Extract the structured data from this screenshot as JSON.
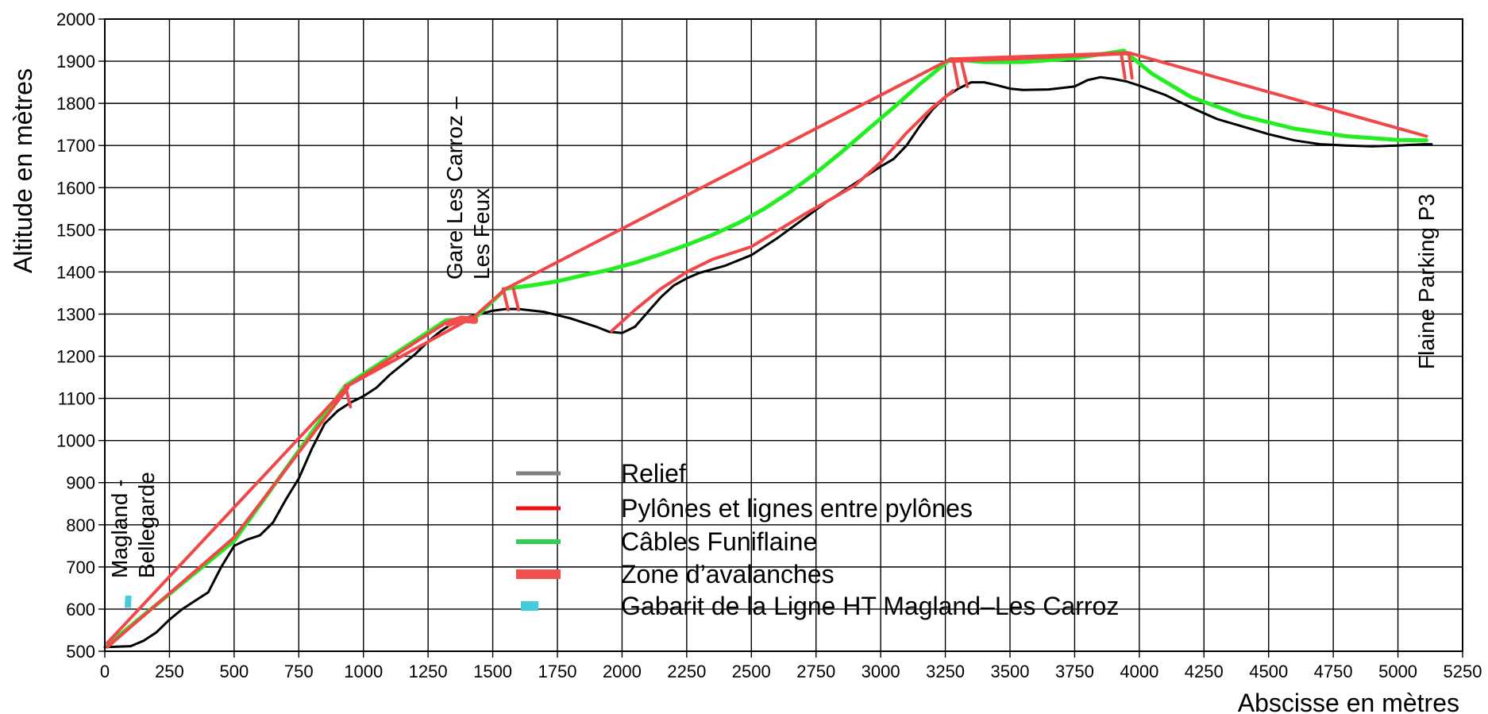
{
  "chart_data": {
    "type": "line",
    "xlabel": "Abscisse en mètres",
    "ylabel": "Altitude en mètres",
    "xlim": [
      0,
      5250
    ],
    "ylim": [
      500,
      2000
    ],
    "xticks": [
      0,
      250,
      500,
      750,
      1000,
      1250,
      1500,
      1750,
      2000,
      2250,
      2500,
      2750,
      3000,
      3250,
      3500,
      3750,
      4000,
      4250,
      4500,
      4750,
      5000,
      5250
    ],
    "yticks": [
      500,
      600,
      700,
      800,
      900,
      1000,
      1100,
      1200,
      1300,
      1400,
      1500,
      1600,
      1700,
      1800,
      1900,
      2000
    ],
    "grid": true,
    "legend_position": "center",
    "colors": {
      "relief": "#000000",
      "relief_legend": "#808080",
      "pylons": "#f04848",
      "pylons_legend": "#ee1111",
      "cables": "#22ee22",
      "cables_legend": "#33cc55",
      "avalanche": "#f05050",
      "gabarit": "#44ccdd"
    },
    "series": [
      {
        "key": "relief",
        "name": "Relief",
        "x": [
          0,
          100,
          150,
          200,
          250,
          300,
          350,
          400,
          450,
          500,
          550,
          600,
          650,
          700,
          750,
          800,
          850,
          900,
          950,
          1000,
          1050,
          1100,
          1150,
          1200,
          1250,
          1300,
          1350,
          1400,
          1450,
          1500,
          1550,
          1600,
          1700,
          1800,
          1900,
          1950,
          2000,
          2050,
          2100,
          2150,
          2200,
          2250,
          2300,
          2400,
          2500,
          2600,
          2700,
          2800,
          2900,
          3000,
          3050,
          3100,
          3150,
          3200,
          3250,
          3300,
          3350,
          3400,
          3450,
          3500,
          3550,
          3650,
          3750,
          3800,
          3850,
          3900,
          3950,
          4000,
          4100,
          4200,
          4300,
          4400,
          4500,
          4600,
          4700,
          4800,
          4900,
          5000,
          5100,
          5130
        ],
        "values": [
          510,
          512,
          525,
          545,
          575,
          600,
          620,
          640,
          700,
          750,
          765,
          775,
          805,
          860,
          910,
          980,
          1040,
          1070,
          1090,
          1105,
          1125,
          1155,
          1180,
          1205,
          1235,
          1260,
          1280,
          1292,
          1300,
          1308,
          1312,
          1312,
          1305,
          1290,
          1270,
          1258,
          1255,
          1270,
          1305,
          1340,
          1368,
          1385,
          1398,
          1415,
          1440,
          1480,
          1525,
          1570,
          1610,
          1650,
          1668,
          1700,
          1745,
          1785,
          1815,
          1835,
          1850,
          1850,
          1843,
          1835,
          1832,
          1833,
          1840,
          1855,
          1862,
          1858,
          1852,
          1842,
          1820,
          1790,
          1763,
          1745,
          1727,
          1712,
          1703,
          1700,
          1698,
          1700,
          1703,
          1703
        ]
      },
      {
        "key": "pylons",
        "name": "Pylônes et lignes entre pylônes",
        "segments": [
          {
            "x": [
              10,
              940,
              1430,
              1550,
              3270,
              3960,
              5110
            ],
            "values": [
              520,
              1130,
              1295,
              1360,
              1905,
              1920,
              1722
            ]
          },
          {
            "x": [
              940,
              1320,
              1420
            ],
            "values": [
              1130,
              1280,
              1293
            ]
          },
          {
            "x": [
              10,
              500,
              940
            ],
            "values": [
              510,
              770,
              1125
            ]
          },
          {
            "x": [
              1960,
              2050,
              2150,
              2250,
              2350,
              2500,
              2700,
              2900,
              3000,
              3100,
              3200,
              3280
            ],
            "values": [
              1260,
              1310,
              1360,
              1400,
              1430,
              1460,
              1535,
              1605,
              1660,
              1730,
              1790,
              1830
            ]
          },
          {
            "x": [
              3270,
              3500,
              3760,
              3960
            ],
            "values": [
              1900,
              1905,
              1913,
              1918
            ]
          },
          {
            "x": [
              930,
              950
            ],
            "values": [
              1130,
              1080
            ]
          },
          {
            "x": [
              1540,
              1560
            ],
            "values": [
              1360,
              1310
            ]
          },
          {
            "x": [
              1580,
              1600
            ],
            "values": [
              1360,
              1310
            ]
          },
          {
            "x": [
              3280,
              3300
            ],
            "values": [
              1905,
              1840
            ]
          },
          {
            "x": [
              3310,
              3335
            ],
            "values": [
              1905,
              1840
            ]
          },
          {
            "x": [
              3930,
              3945
            ],
            "values": [
              1918,
              1860
            ]
          },
          {
            "x": [
              3960,
              3972
            ],
            "values": [
              1918,
              1860
            ]
          }
        ]
      },
      {
        "key": "cables",
        "name": "Câbles Funiflaine",
        "segments": [
          {
            "x": [
              10,
              500,
              930,
              1320,
              1430,
              1550
            ],
            "values": [
              515,
              762,
              1130,
              1285,
              1290,
              1360
            ]
          },
          {
            "x": [
              1550,
              1650,
              1750,
              1850,
              1950,
              2050,
              2150,
              2250,
              2350,
              2450,
              2550,
              2650,
              2750,
              2850,
              2950,
              3050,
              3150,
              3270
            ],
            "values": [
              1360,
              1368,
              1378,
              1392,
              1405,
              1422,
              1442,
              1464,
              1488,
              1516,
              1550,
              1590,
              1635,
              1685,
              1738,
              1790,
              1845,
              1905
            ]
          },
          {
            "x": [
              3270,
              3400,
              3550,
              3750,
              3940
            ],
            "values": [
              1905,
              1898,
              1898,
              1907,
              1925
            ]
          },
          {
            "x": [
              3940,
              4050,
              4200,
              4400,
              4600,
              4800,
              5000,
              5110
            ],
            "values": [
              1925,
              1870,
              1815,
              1770,
              1740,
              1722,
              1713,
              1712
            ]
          }
        ]
      },
      {
        "key": "avalanche",
        "name": "Zone d’avalanches",
        "segments": [
          {
            "x": [
              1330,
              1380,
              1430
            ],
            "values": [
              1278,
              1288,
              1285
            ]
          }
        ]
      },
      {
        "key": "gabarit",
        "name": "Gabarit de la Ligne HT Magland–Les Carroz",
        "segments": [
          {
            "x": [
              80,
              82,
              100,
              98
            ],
            "values": [
              605,
              630,
              630,
              605
            ]
          }
        ]
      }
    ],
    "annotations": [
      {
        "key": "magland",
        "lines": [
          "Magland -",
          "Bellegarde"
        ]
      },
      {
        "key": "carroz",
        "lines": [
          "Gare Les Carroz –",
          "Les Feux"
        ]
      },
      {
        "key": "flaine",
        "lines": [
          "Flaine Parking P3"
        ]
      }
    ]
  }
}
